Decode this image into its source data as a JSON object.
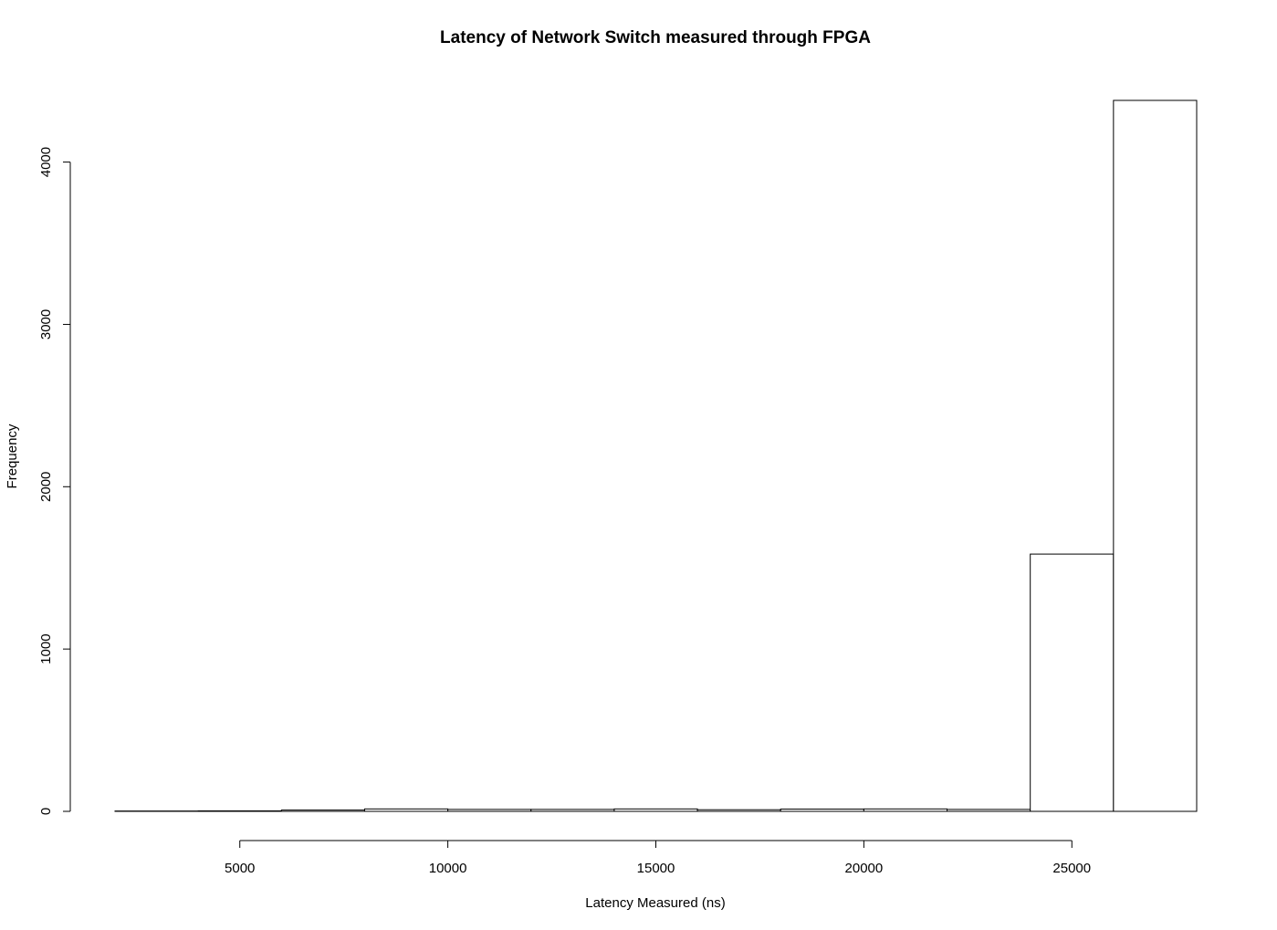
{
  "chart_data": {
    "type": "bar",
    "title": "Latency of Network Switch measured through FPGA",
    "xlabel": "Latency Measured (ns)",
    "ylabel": "Frequency",
    "xlim": [
      2000,
      28000
    ],
    "ylim": [
      0,
      4380
    ],
    "xticks": [
      5000,
      10000,
      15000,
      20000,
      25000
    ],
    "yticks": [
      0,
      1000,
      2000,
      3000,
      4000
    ],
    "grid": false,
    "bins": [
      {
        "start": 2000,
        "end": 4000,
        "count": 2
      },
      {
        "start": 4000,
        "end": 6000,
        "count": 3
      },
      {
        "start": 6000,
        "end": 8000,
        "count": 8
      },
      {
        "start": 8000,
        "end": 10000,
        "count": 15
      },
      {
        "start": 10000,
        "end": 12000,
        "count": 12
      },
      {
        "start": 12000,
        "end": 14000,
        "count": 12
      },
      {
        "start": 14000,
        "end": 16000,
        "count": 15
      },
      {
        "start": 16000,
        "end": 18000,
        "count": 10
      },
      {
        "start": 18000,
        "end": 20000,
        "count": 14
      },
      {
        "start": 20000,
        "end": 22000,
        "count": 15
      },
      {
        "start": 22000,
        "end": 24000,
        "count": 12
      },
      {
        "start": 24000,
        "end": 26000,
        "count": 1585
      },
      {
        "start": 26000,
        "end": 28000,
        "count": 4380
      }
    ]
  }
}
